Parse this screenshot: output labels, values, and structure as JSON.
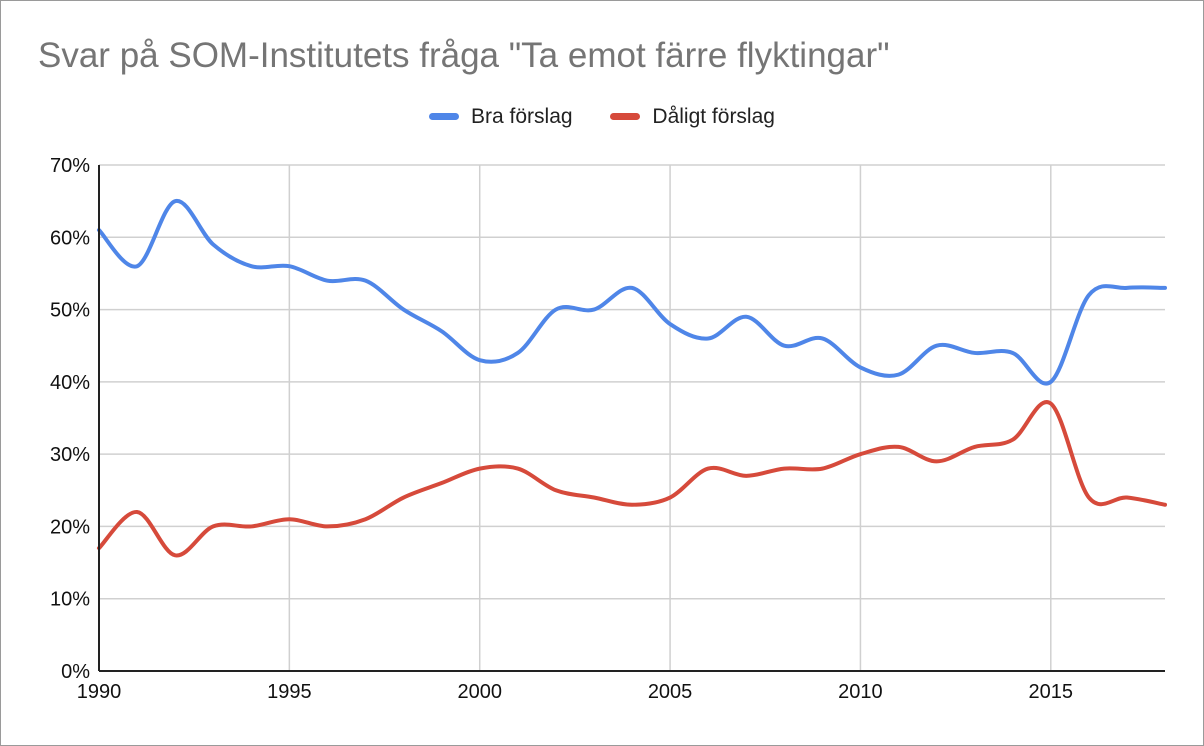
{
  "chart_data": {
    "type": "line",
    "title": "Svar på SOM-Institutets fråga \"Ta emot färre flyktingar\"",
    "xlabel": "",
    "ylabel": "",
    "x": [
      1990,
      1991,
      1992,
      1993,
      1994,
      1995,
      1996,
      1997,
      1998,
      1999,
      2000,
      2001,
      2002,
      2003,
      2004,
      2005,
      2006,
      2007,
      2008,
      2009,
      2010,
      2011,
      2012,
      2013,
      2014,
      2015,
      2016,
      2017,
      2018
    ],
    "xlim": [
      1990,
      2018
    ],
    "ylim": [
      0,
      70
    ],
    "x_ticks": [
      "1990",
      "1995",
      "2000",
      "2005",
      "2010",
      "2015"
    ],
    "x_tick_values": [
      1990,
      1995,
      2000,
      2005,
      2010,
      2015
    ],
    "y_ticks": [
      "0%",
      "10%",
      "20%",
      "30%",
      "40%",
      "50%",
      "60%",
      "70%"
    ],
    "y_tick_values": [
      0,
      10,
      20,
      30,
      40,
      50,
      60,
      70
    ],
    "grid": true,
    "legend_position": "top",
    "series": [
      {
        "name": "Bra förslag",
        "color": "#4f86e8",
        "values": [
          61,
          56,
          65,
          59,
          56,
          56,
          54,
          54,
          50,
          47,
          43,
          44,
          50,
          50,
          53,
          48,
          46,
          49,
          45,
          46,
          42,
          41,
          45,
          44,
          44,
          40,
          52,
          53,
          53
        ]
      },
      {
        "name": "Dåligt förslag",
        "color": "#d64a3b",
        "values": [
          17,
          22,
          16,
          20,
          20,
          21,
          20,
          21,
          24,
          26,
          28,
          28,
          25,
          24,
          23,
          24,
          28,
          27,
          28,
          28,
          30,
          31,
          29,
          31,
          32,
          37,
          24,
          24,
          23
        ]
      }
    ]
  }
}
